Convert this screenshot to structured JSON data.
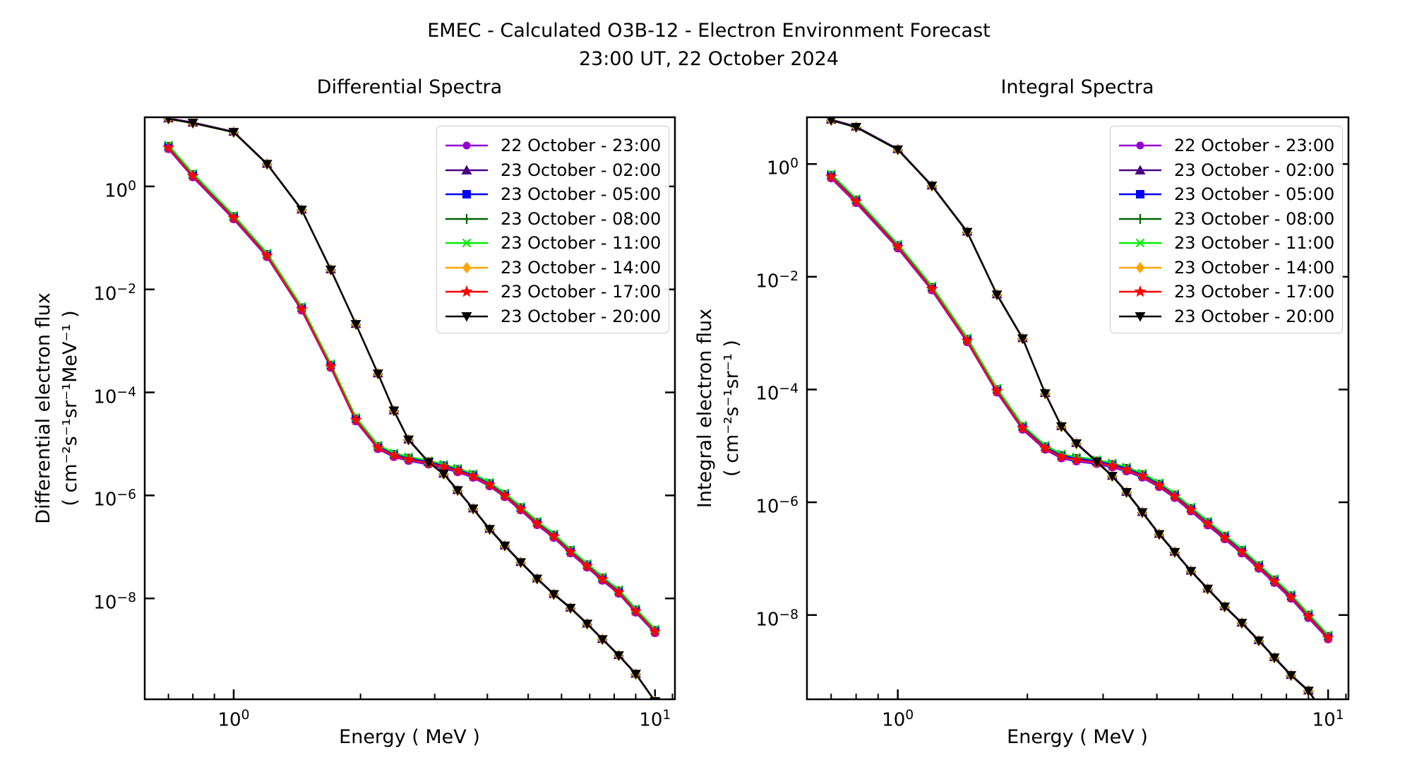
{
  "title": {
    "line1": "EMEC - Calculated O3B-12 - Electron Environment Forecast",
    "line2": "23:00 UT, 22 October 2024"
  },
  "colors": {
    "background": "#ffffff",
    "axis": "#000000",
    "legend_border": "#cccccc"
  },
  "series": [
    {
      "label": "22 October - 23:00",
      "color": "#9400D3",
      "marker": "circle",
      "group": "quiet",
      "factor": 0.88
    },
    {
      "label": "23 October - 02:00",
      "color": "#4B0082",
      "marker": "triangle-up",
      "group": "enhanced",
      "factor": 1.03
    },
    {
      "label": "23 October - 05:00",
      "color": "#0000FF",
      "marker": "square",
      "group": "quiet",
      "factor": 1.0
    },
    {
      "label": "23 October - 08:00",
      "color": "#006400",
      "marker": "plus",
      "group": "enhanced",
      "factor": 0.99
    },
    {
      "label": "23 October - 11:00",
      "color": "#00EE00",
      "marker": "x",
      "group": "quiet",
      "factor": 1.06
    },
    {
      "label": "23 October - 14:00",
      "color": "#FFA500",
      "marker": "diamond",
      "group": "enhanced",
      "factor": 1.0
    },
    {
      "label": "23 October - 17:00",
      "color": "#FF0000",
      "marker": "star",
      "group": "quiet",
      "factor": 0.94
    },
    {
      "label": "23 October - 20:00",
      "color": "#000000",
      "marker": "triangle-down",
      "group": "enhanced",
      "factor": 1.0
    }
  ],
  "chart_data": [
    {
      "type": "line",
      "title": "Differential Spectra",
      "xlabel": "Energy ( MeV )",
      "ylabel_line1": "Differential electron flux",
      "ylabel_line2": "( cm⁻²s⁻¹sr⁻¹MeV⁻¹ )",
      "xscale": "log",
      "yscale": "log",
      "xlim": [
        0.615,
        11.15
      ],
      "ylim": [
        1.1e-10,
        22
      ],
      "xticks": [
        1,
        10
      ],
      "xtick_exponents": [
        0,
        1
      ],
      "xminor_ticks": [
        0.7,
        0.8,
        0.9,
        2,
        3,
        4,
        5,
        6,
        7,
        8,
        9,
        11
      ],
      "ytick_exponents": [
        0,
        -2,
        -4,
        -6,
        -8
      ],
      "grid": false,
      "legend_position": "upper right",
      "energies_mev": [
        0.7,
        0.8,
        1.0,
        1.2,
        1.45,
        1.7,
        1.95,
        2.2,
        2.4,
        2.6,
        2.9,
        3.15,
        3.4,
        3.7,
        4.05,
        4.4,
        4.8,
        5.25,
        5.75,
        6.3,
        6.9,
        7.5,
        8.2,
        9.0,
        10.0
      ],
      "curves": {
        "quiet": [
          6.0,
          1.7,
          0.26,
          0.048,
          0.0044,
          0.00034,
          3.1e-05,
          9e-06,
          6.3e-06,
          5.3e-06,
          4.5e-06,
          3.8e-06,
          3.2e-06,
          2.5e-06,
          1.7e-06,
          1.05e-06,
          5.8e-07,
          3e-07,
          1.7e-07,
          8.5e-08,
          4.5e-08,
          2.5e-08,
          1.4e-08,
          6e-09,
          2.4e-09
        ],
        "enhanced": [
          20.5,
          17.0,
          11.3,
          2.7,
          0.35,
          0.024,
          0.0021,
          0.00023,
          4.4e-05,
          1.2e-05,
          4.4e-06,
          2.6e-06,
          1.25e-06,
          5.5e-07,
          2.2e-07,
          1.05e-07,
          5e-08,
          2.4e-08,
          1.2e-08,
          6.5e-09,
          3.2e-09,
          1.6e-09,
          7.8e-10,
          3.4e-10,
          1e-10
        ]
      }
    },
    {
      "type": "line",
      "title": "Integral Spectra",
      "xlabel": "Energy ( MeV )",
      "ylabel_line1": "Integral electron flux",
      "ylabel_line2": "( cm⁻²s⁻¹sr⁻¹ )",
      "xscale": "log",
      "yscale": "log",
      "xlim": [
        0.615,
        11.15
      ],
      "ylim": [
        3.2e-10,
        6.75
      ],
      "xticks": [
        1,
        10
      ],
      "xtick_exponents": [
        0,
        1
      ],
      "xminor_ticks": [
        0.7,
        0.8,
        0.9,
        2,
        3,
        4,
        5,
        6,
        7,
        8,
        9,
        11
      ],
      "ytick_exponents": [
        0,
        -2,
        -4,
        -6,
        -8
      ],
      "grid": false,
      "legend_position": "upper right",
      "energies_mev": [
        0.7,
        0.8,
        1.0,
        1.2,
        1.45,
        1.7,
        1.95,
        2.2,
        2.4,
        2.6,
        2.9,
        3.15,
        3.4,
        3.7,
        4.05,
        4.4,
        4.8,
        5.25,
        5.75,
        6.3,
        6.9,
        7.5,
        8.2,
        9.0,
        10.0
      ],
      "curves": {
        "quiet": [
          0.63,
          0.23,
          0.036,
          0.0065,
          0.00078,
          0.0001,
          2.2e-05,
          9.7e-06,
          6.8e-06,
          6e-06,
          5.4e-06,
          4.7e-06,
          4e-06,
          3.1e-06,
          2.1e-06,
          1.35e-06,
          7.8e-07,
          4.4e-07,
          2.5e-07,
          1.4e-07,
          7.5e-08,
          4.2e-08,
          2.2e-08,
          1e-08,
          4.2e-09
        ],
        "enhanced": [
          6.0,
          4.5,
          1.8,
          0.41,
          0.062,
          0.0048,
          0.0008,
          8.5e-05,
          2.2e-05,
          1.1e-05,
          5.2e-06,
          2.9e-06,
          1.5e-06,
          6.6e-07,
          2.7e-07,
          1.3e-07,
          6e-08,
          2.9e-08,
          1.4e-08,
          7.2e-09,
          3.5e-09,
          1.75e-09,
          8.5e-10,
          4.5e-10,
          1.4e-10
        ]
      }
    }
  ]
}
